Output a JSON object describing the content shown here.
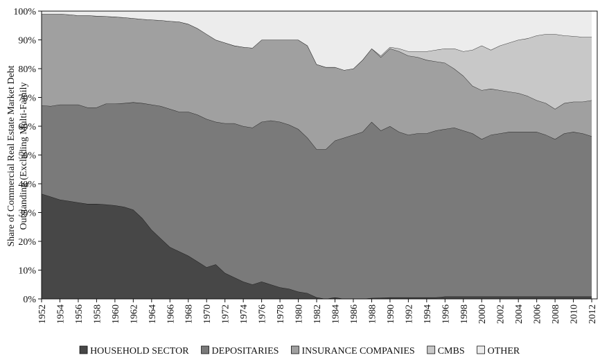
{
  "chart_data": {
    "type": "stacked_area",
    "y_label": [
      "Share of Commercial Real Estate Market Debt",
      "Outstanding (Excluding Multi-Family"
    ],
    "x": [
      1952,
      1953,
      1954,
      1955,
      1956,
      1957,
      1958,
      1959,
      1960,
      1961,
      1962,
      1963,
      1964,
      1965,
      1966,
      1967,
      1968,
      1969,
      1970,
      1971,
      1972,
      1973,
      1974,
      1975,
      1976,
      1977,
      1978,
      1979,
      1980,
      1981,
      1982,
      1983,
      1984,
      1985,
      1986,
      1987,
      1988,
      1989,
      1990,
      1991,
      1992,
      1993,
      1994,
      1995,
      1996,
      1997,
      1998,
      1999,
      2000,
      2001,
      2002,
      2003,
      2004,
      2005,
      2006,
      2007,
      2008,
      2009,
      2010,
      2011,
      2012
    ],
    "series": [
      {
        "name": "HOUSEHOLD SECTOR",
        "color": "#474747",
        "values": [
          36.5,
          35.5,
          34.5,
          34,
          33.5,
          33,
          33,
          32.8,
          32.5,
          32,
          31,
          28,
          24,
          21,
          18,
          16.5,
          15,
          13,
          11,
          12,
          9,
          7.5,
          6,
          5,
          6,
          5,
          4,
          3.5,
          2.5,
          2,
          0.5,
          0,
          0.5,
          0,
          0,
          0,
          0.3,
          0.4,
          0.5,
          0.5,
          0.5,
          0.5,
          0.5,
          0.5,
          0.8,
          0.8,
          0.8,
          0.8,
          0.8,
          0.8,
          0.8,
          0.8,
          0.8,
          0.8,
          0.8,
          0.8,
          0.8,
          0.8,
          0.8,
          0.8,
          0.8
        ]
      },
      {
        "name": "DEPOSITARIES",
        "color": "#7a7a7a",
        "values": [
          30.7,
          31.5,
          33,
          33.5,
          34,
          33.5,
          33.5,
          35,
          35.3,
          36,
          37.3,
          40,
          43.5,
          46,
          48,
          48.5,
          50,
          51,
          51.5,
          49.5,
          52,
          53.5,
          54,
          54.5,
          55.5,
          57,
          57.5,
          57,
          56.5,
          54,
          51.5,
          52,
          54.5,
          56,
          57,
          58,
          61.2,
          58.1,
          59.5,
          57.5,
          56.5,
          57,
          57,
          58,
          58.2,
          58.7,
          57.7,
          56.7,
          54.7,
          56.2,
          56.7,
          57.2,
          57.2,
          57.2,
          57.2,
          56.2,
          54.7,
          56.7,
          57.2,
          56.7,
          55.7
        ]
      },
      {
        "name": "INSURANCE COMPANIES",
        "color": "#a0a0a0",
        "values": [
          31.8,
          32,
          31.5,
          31.3,
          31,
          32,
          31.8,
          30.4,
          30.2,
          29.8,
          29.2,
          29.2,
          29.5,
          29.8,
          30.5,
          31.3,
          30.5,
          30,
          29.5,
          28.5,
          28,
          27,
          27.5,
          27.7,
          28.5,
          28,
          28.5,
          29.5,
          31,
          32,
          29.5,
          28.5,
          25.5,
          23.5,
          23,
          25,
          25.5,
          25.5,
          27,
          28,
          27.5,
          26.5,
          25.5,
          24,
          23,
          20.5,
          19,
          16.5,
          17,
          16,
          15,
          14,
          13.5,
          12.5,
          11,
          11,
          10.5,
          10.5,
          10.5,
          11,
          12.5
        ]
      },
      {
        "name": "CMBS",
        "color": "#c8c8c8",
        "values": [
          0,
          0,
          0,
          0,
          0,
          0,
          0,
          0,
          0,
          0,
          0,
          0,
          0,
          0,
          0,
          0,
          0,
          0,
          0,
          0,
          0,
          0,
          0,
          0,
          0,
          0,
          0,
          0,
          0,
          0,
          0,
          0,
          0,
          0,
          0,
          0,
          0,
          0.5,
          0.5,
          1,
          1.5,
          2,
          3,
          4,
          5,
          7,
          8.5,
          12.5,
          15.5,
          13.5,
          15.5,
          17,
          18.5,
          20,
          22.5,
          24,
          26,
          23.5,
          22.8,
          22.5,
          22
        ]
      },
      {
        "name": "OTHER",
        "color": "#ececec",
        "values": [
          1,
          1,
          1,
          1.2,
          1.5,
          1.5,
          1.7,
          1.8,
          2,
          2.2,
          2.5,
          2.8,
          3,
          3.2,
          3.5,
          3.7,
          4.5,
          6,
          8,
          10,
          11,
          12,
          12.5,
          12.8,
          10,
          10,
          10,
          10,
          10,
          12,
          18.5,
          19.5,
          19.5,
          20.5,
          20,
          17,
          13,
          15.5,
          12.5,
          13,
          14,
          14,
          14,
          13.5,
          13,
          13,
          14,
          13.5,
          12,
          13.5,
          12,
          11,
          10,
          9.5,
          8.5,
          8,
          8,
          8.5,
          8.7,
          9,
          9
        ]
      }
    ],
    "xlim": [
      1952,
      2012.6
    ],
    "xticks": [
      1952,
      1954,
      1956,
      1958,
      1960,
      1962,
      1964,
      1966,
      1968,
      1970,
      1972,
      1974,
      1976,
      1978,
      1980,
      1982,
      1984,
      1986,
      1988,
      1990,
      1992,
      1994,
      1996,
      1998,
      2000,
      2002,
      2004,
      2006,
      2008,
      2010,
      2012
    ],
    "ylim": [
      0,
      100
    ],
    "yticks": [
      {
        "value": 0,
        "label": "0%"
      },
      {
        "value": 10,
        "label": "10%"
      },
      {
        "value": 20,
        "label": "20%"
      },
      {
        "value": 30,
        "label": "30%"
      },
      {
        "value": 40,
        "label": "40%"
      },
      {
        "value": 50,
        "label": "50%"
      },
      {
        "value": 60,
        "label": "60%"
      },
      {
        "value": 70,
        "label": "70%"
      },
      {
        "value": 80,
        "label": "80%"
      },
      {
        "value": 90,
        "label": "90%"
      },
      {
        "value": 100,
        "label": "100%"
      }
    ],
    "legend": "bottom"
  }
}
